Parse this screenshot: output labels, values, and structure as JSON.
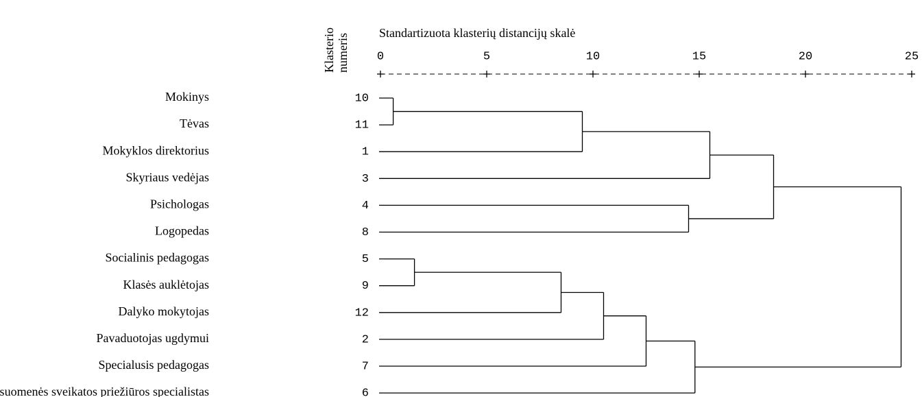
{
  "chart_data": {
    "type": "dendrogram",
    "title": "Standartizuota klasterių distancijų skalė",
    "leaf_header": [
      "Klasterio",
      "numeris"
    ],
    "xlim": [
      0,
      25
    ],
    "xticks": [
      0,
      5,
      10,
      15,
      20,
      25
    ],
    "color": "#000000",
    "leaves": [
      {
        "label": "Mokinys",
        "number": 10
      },
      {
        "label": "Tėvas",
        "number": 11
      },
      {
        "label": "Mokyklos direktorius",
        "number": 1
      },
      {
        "label": "Skyriaus vedėjas",
        "number": 3
      },
      {
        "label": "Psichologas",
        "number": 4
      },
      {
        "label": "Logopedas",
        "number": 8
      },
      {
        "label": "Socialinis pedagogas",
        "number": 5
      },
      {
        "label": "Klasės auklėtojas",
        "number": 9
      },
      {
        "label": "Dalyko mokytojas",
        "number": 12
      },
      {
        "label": "Pavaduotojas ugdymui",
        "number": 2
      },
      {
        "label": "Specialusis pedagogas",
        "number": 7
      },
      {
        "label": "Visuomenės sveikatos priežiūros specialistas",
        "number": 6
      }
    ],
    "merges": [
      {
        "children": [
          0,
          1
        ],
        "distance": 0.6
      },
      {
        "children": [
          12,
          2
        ],
        "distance": 9.5
      },
      {
        "children": [
          13,
          3
        ],
        "distance": 15.5
      },
      {
        "children": [
          4,
          5
        ],
        "distance": 14.5
      },
      {
        "children": [
          14,
          15
        ],
        "distance": 18.5
      },
      {
        "children": [
          6,
          7
        ],
        "distance": 1.6
      },
      {
        "children": [
          17,
          8
        ],
        "distance": 8.5
      },
      {
        "children": [
          18,
          9
        ],
        "distance": 10.5
      },
      {
        "children": [
          19,
          10
        ],
        "distance": 12.5
      },
      {
        "children": [
          20,
          11
        ],
        "distance": 14.8
      },
      {
        "children": [
          16,
          21
        ],
        "distance": 24.5
      }
    ]
  }
}
